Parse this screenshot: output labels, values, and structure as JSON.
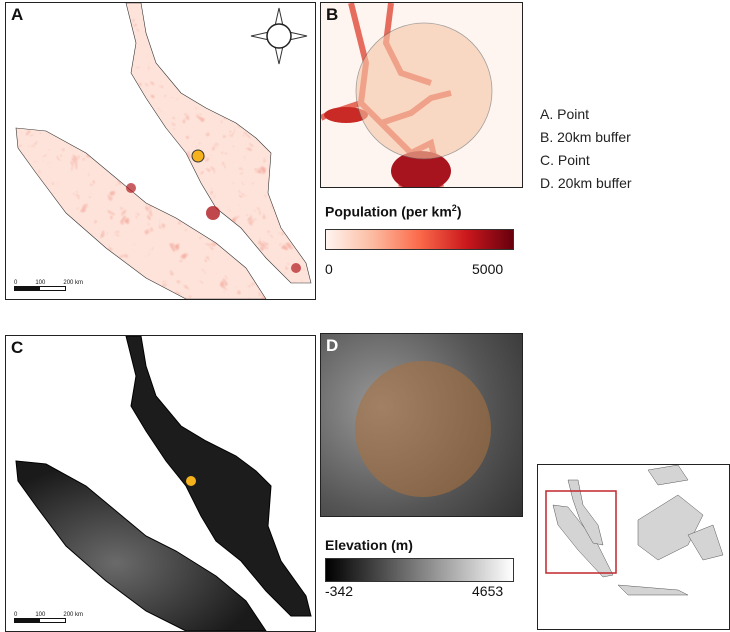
{
  "panels": {
    "a": "A",
    "b": "B",
    "c": "C",
    "d": "D"
  },
  "list": [
    "A. Point",
    "B. 20km buffer",
    "C. Point",
    "D. 20km buffer"
  ],
  "population_legend": {
    "title": "Population (per km",
    "sup": "2",
    "title_end": ")",
    "min": "0",
    "max": "5000",
    "colors": [
      "#fff5f0",
      "#fb6a4a",
      "#cb181d",
      "#67000d"
    ]
  },
  "elevation_legend": {
    "title": "Elevation (m)",
    "min": "-342",
    "max": "4653",
    "colors": [
      "#000000",
      "#ffffff"
    ]
  },
  "scale_bar": {
    "labels": [
      "0",
      "100",
      "200 km"
    ]
  },
  "icons": {
    "compass": "north-arrow-icon",
    "point": "location-point-icon"
  },
  "colors": {
    "point": "#f5b21d",
    "inset_box": "#c0272d",
    "land_inset": "#d4d4d4"
  }
}
